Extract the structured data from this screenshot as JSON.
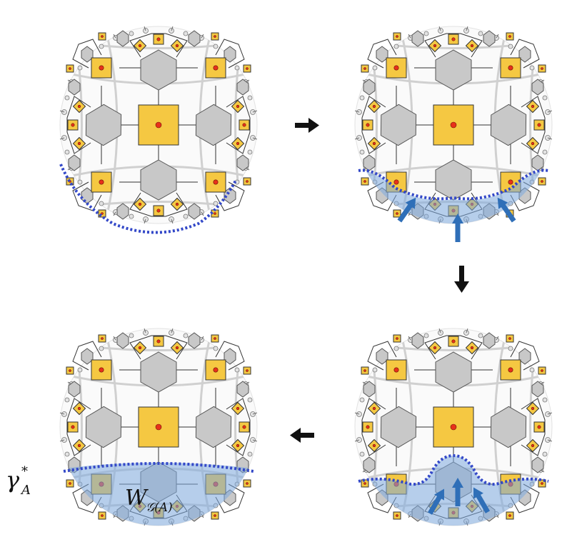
{
  "labels": {
    "gamma_base": "γ",
    "gamma_sup": "*",
    "gamma_sub": "A",
    "w_base": "W",
    "w_sub": "𝒢(A)"
  },
  "panels": [
    {
      "id": "top-left",
      "step": 1,
      "region": "none"
    },
    {
      "id": "top-right",
      "step": 2,
      "region": "flat",
      "arrows": 3
    },
    {
      "id": "bottom-right",
      "step": 3,
      "region": "bump",
      "arrows": 3
    },
    {
      "id": "bottom-left",
      "step": 4,
      "region": "cap",
      "arrows": 0
    }
  ],
  "flow_arrows": [
    "right",
    "down",
    "left"
  ],
  "colors": {
    "square_fill": "#f5c842",
    "square_stroke": "#333333",
    "hexagon_fill": "#c8c8c8",
    "hexagon_stroke": "#555555",
    "dot": "#e8311a",
    "grid_line": "#cfcfcf",
    "region_fill": "#7ea9de",
    "cut_line": "#3348c8",
    "push_arrow": "#2f6fb8",
    "flow_arrow": "#111111"
  }
}
